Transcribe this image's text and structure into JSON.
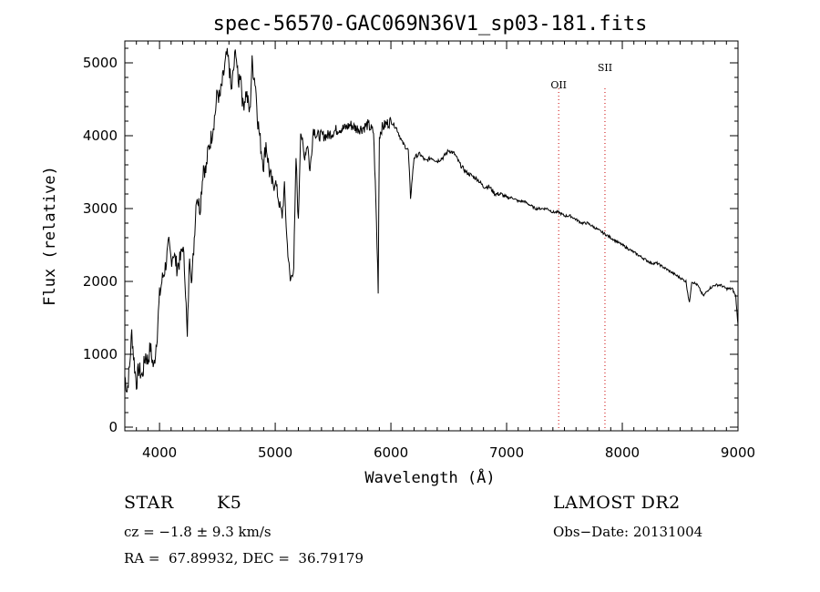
{
  "chart_data": {
    "type": "line",
    "title": "spec-56570-GAC069N36V1_sp03-181.fits",
    "xlabel": "Wavelength (Å)",
    "ylabel": "Flux (relative)",
    "xlim": [
      3700,
      9000
    ],
    "ylim": [
      -50,
      5300
    ],
    "xticks": [
      4000,
      5000,
      6000,
      7000,
      8000,
      9000
    ],
    "yticks": [
      0,
      1000,
      2000,
      3000,
      4000,
      5000
    ],
    "grid": false,
    "line_color": "#000000",
    "marker_line_color": "#cc0000",
    "lines": [
      {
        "name": "OII",
        "x": 7450
      },
      {
        "name": "SII",
        "x": 7850
      }
    ],
    "series": [
      {
        "x": [
          3700,
          3720,
          3740,
          3760,
          3780,
          3800,
          3820,
          3850,
          3880,
          3900,
          3920,
          3950,
          3980,
          4000,
          4020,
          4050,
          4080,
          4100,
          4120,
          4150,
          4180,
          4200,
          4220,
          4240,
          4260,
          4280,
          4300,
          4320,
          4350,
          4380,
          4400,
          4420,
          4450,
          4480,
          4500,
          4520,
          4550,
          4580,
          4600,
          4620,
          4640,
          4660,
          4680,
          4700,
          4720,
          4750,
          4780,
          4800,
          4830,
          4850,
          4880,
          4900,
          4920,
          4950,
          4980,
          5000,
          5030,
          5060,
          5080,
          5100,
          5130,
          5160,
          5180,
          5200,
          5220,
          5250,
          5280,
          5300,
          5330,
          5360,
          5400,
          5450,
          5500,
          5550,
          5600,
          5650,
          5700,
          5750,
          5800,
          5850,
          5870,
          5890,
          5900,
          5920,
          5950,
          6000,
          6050,
          6100,
          6150,
          6170,
          6200,
          6250,
          6300,
          6350,
          6400,
          6450,
          6500,
          6550,
          6600,
          6650,
          6700,
          6750,
          6800,
          6850,
          6900,
          6950,
          7000,
          7050,
          7100,
          7150,
          7200,
          7250,
          7300,
          7350,
          7400,
          7450,
          7500,
          7550,
          7600,
          7650,
          7700,
          7750,
          7800,
          7850,
          7900,
          7950,
          8000,
          8050,
          8100,
          8150,
          8200,
          8250,
          8300,
          8350,
          8400,
          8450,
          8500,
          8550,
          8580,
          8600,
          8650,
          8700,
          8750,
          8800,
          8850,
          8900,
          8950,
          8980,
          9000
        ],
        "values": [
          700,
          500,
          800,
          1300,
          900,
          600,
          800,
          700,
          1000,
          900,
          1100,
          800,
          1300,
          1800,
          2000,
          2200,
          2500,
          2300,
          2400,
          2200,
          2300,
          2500,
          2100,
          1200,
          2400,
          2000,
          2600,
          3200,
          3000,
          3600,
          3500,
          3800,
          4000,
          4300,
          4600,
          4500,
          4800,
          5100,
          5000,
          4600,
          4900,
          5200,
          4700,
          4900,
          4400,
          4600,
          4300,
          5000,
          4700,
          4200,
          3800,
          3600,
          3900,
          3500,
          3300,
          3400,
          3100,
          2900,
          3300,
          2600,
          2000,
          2200,
          3700,
          2800,
          4100,
          3700,
          3900,
          3500,
          4100,
          4000,
          4000,
          4000,
          4050,
          4100,
          4100,
          4150,
          4100,
          4100,
          4150,
          4050,
          3100,
          1900,
          4000,
          4100,
          4150,
          4200,
          4100,
          3900,
          3800,
          3150,
          3700,
          3750,
          3650,
          3700,
          3650,
          3700,
          3800,
          3750,
          3600,
          3500,
          3450,
          3400,
          3300,
          3300,
          3200,
          3200,
          3150,
          3150,
          3100,
          3100,
          3050,
          3000,
          3000,
          3000,
          2950,
          2950,
          2900,
          2900,
          2850,
          2800,
          2800,
          2750,
          2700,
          2650,
          2600,
          2550,
          2500,
          2450,
          2400,
          2350,
          2300,
          2250,
          2250,
          2200,
          2150,
          2100,
          2050,
          2000,
          1700,
          2000,
          1950,
          1800,
          1900,
          1950,
          1950,
          1900,
          1900,
          1800,
          1400
        ]
      }
    ]
  },
  "footer": {
    "object_type": "STAR",
    "subclass": "K5",
    "survey": "LAMOST DR2",
    "cz": "cz = −1.8 ± 9.3 km/s",
    "obs_date": "Obs−Date: 20131004",
    "coords": "RA =  67.89932, DEC =  36.79179"
  }
}
